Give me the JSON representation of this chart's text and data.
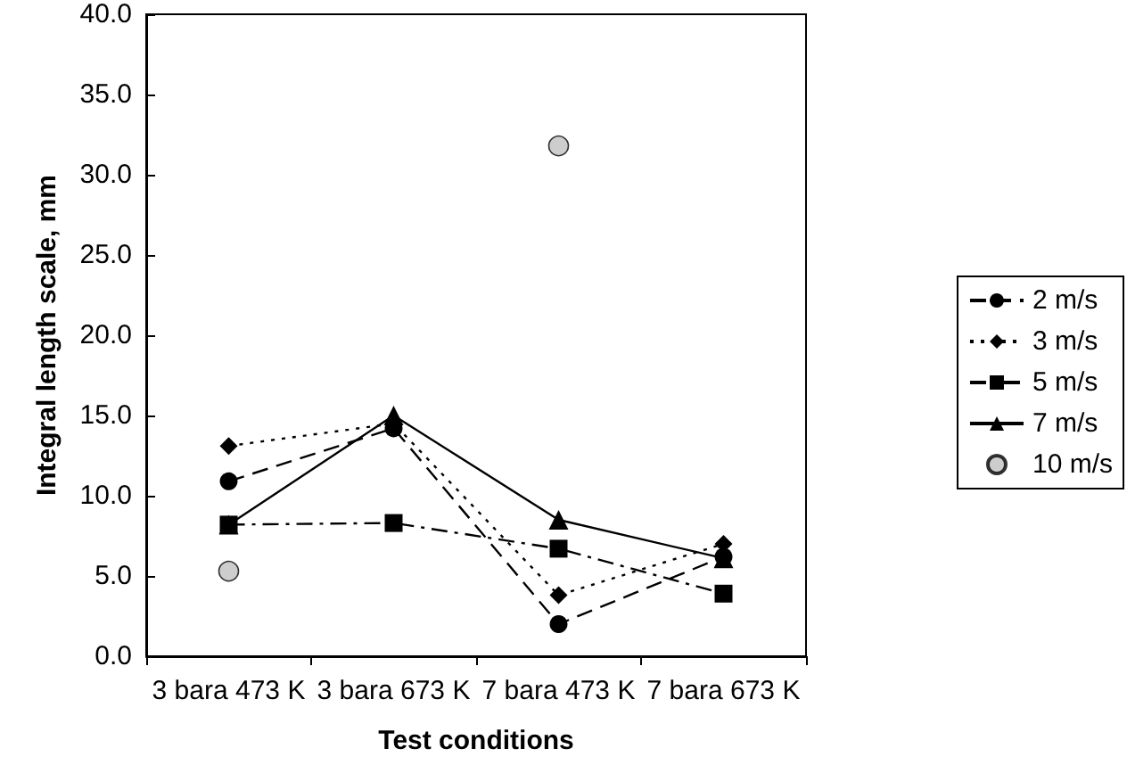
{
  "chart_data": {
    "type": "line",
    "xlabel": "Test conditions",
    "ylabel": "Integral length scale, mm",
    "categories": [
      "3 bara 473 K",
      "3 bara 673 K",
      "7 bara 473 K",
      "7 bara 673 K"
    ],
    "ylim": [
      0,
      40
    ],
    "yticks": [
      {
        "value": 0,
        "label": "0.0"
      },
      {
        "value": 5,
        "label": "5.0"
      },
      {
        "value": 10,
        "label": "10.0"
      },
      {
        "value": 15,
        "label": "15.0"
      },
      {
        "value": 20,
        "label": "20.0"
      },
      {
        "value": 25,
        "label": "25.0"
      },
      {
        "value": 30,
        "label": "30.0"
      },
      {
        "value": 35,
        "label": "35.0"
      },
      {
        "value": 40,
        "label": "40.0"
      }
    ],
    "grid": false,
    "legend": "right",
    "series": [
      {
        "name": "2 m/s",
        "color": "#000000",
        "marker": "circle",
        "line_style": "dashed",
        "values": [
          10.9,
          14.2,
          2.0,
          6.2
        ]
      },
      {
        "name": "3 m/s",
        "color": "#000000",
        "marker": "diamond",
        "line_style": "dotted",
        "values": [
          13.1,
          14.5,
          3.8,
          7.0
        ]
      },
      {
        "name": "5 m/s",
        "color": "#000000",
        "marker": "square",
        "line_style": "dashdot",
        "values": [
          8.2,
          8.3,
          6.7,
          3.9
        ]
      },
      {
        "name": "7 m/s",
        "color": "#000000",
        "marker": "triangle",
        "line_style": "solid",
        "values": [
          8.2,
          15.0,
          8.5,
          6.1
        ]
      },
      {
        "name": "10 m/s",
        "type": "scatter",
        "color": "#c0c0c0",
        "marker": "circle",
        "values": [
          5.3,
          null,
          31.8,
          null
        ]
      }
    ]
  }
}
